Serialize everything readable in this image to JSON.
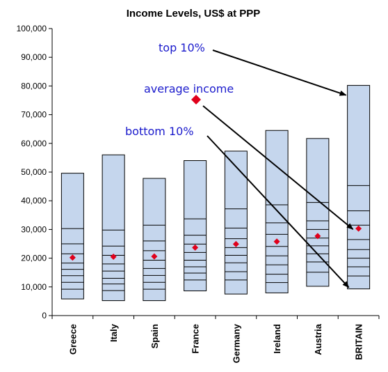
{
  "chart_data": {
    "type": "bar",
    "title": "Income Levels, US$ at PPP",
    "xlabel": "",
    "ylabel": "",
    "ylim": [
      0,
      100000
    ],
    "yticks": [
      0,
      10000,
      20000,
      30000,
      40000,
      50000,
      60000,
      70000,
      80000,
      90000,
      100000
    ],
    "ytick_labels": [
      "0",
      "10,000",
      "20,000",
      "30,000",
      "40,000",
      "50,000",
      "60,000",
      "70,000",
      "80,000",
      "90,000",
      "100,000"
    ],
    "categories": [
      "Greece",
      "Italy",
      "Spain",
      "France",
      "Germany",
      "Ireland",
      "Austria",
      "BRITAIN"
    ],
    "decile_boundaries": [
      [
        5800,
        9200,
        11600,
        13900,
        16100,
        18300,
        21500,
        25000,
        30300,
        49600
      ],
      [
        5200,
        8700,
        11000,
        13000,
        15500,
        18000,
        21000,
        24200,
        29800,
        56000
      ],
      [
        5200,
        9200,
        11600,
        14000,
        16400,
        19300,
        22600,
        26000,
        31500,
        47800
      ],
      [
        8600,
        12400,
        14800,
        17000,
        19300,
        22000,
        24900,
        28000,
        33700,
        54000
      ],
      [
        7500,
        12400,
        15300,
        18400,
        21000,
        23700,
        26800,
        30500,
        37200,
        57300
      ],
      [
        7900,
        11500,
        14400,
        17700,
        20800,
        24100,
        28300,
        32300,
        38600,
        64500
      ],
      [
        10200,
        15100,
        18700,
        21500,
        24300,
        27000,
        30000,
        33000,
        39400,
        61700
      ],
      [
        9300,
        13800,
        17000,
        20000,
        23000,
        26500,
        31500,
        36500,
        45300,
        80200
      ]
    ],
    "average_income": [
      20200,
      20500,
      20600,
      23700,
      24900,
      25800,
      27700,
      30300
    ],
    "bar_fill": "#c5d6ed",
    "bar_stroke": "#000000",
    "average_marker_color": "#e0001b",
    "annotation_color": "#1a1acc",
    "annotations": [
      {
        "text": "top 10%",
        "points_to": "BRITAIN top 10% boundary"
      },
      {
        "text": "average income",
        "points_to": "BRITAIN average income"
      },
      {
        "text": "bottom 10%",
        "points_to": "BRITAIN bottom 10% boundary"
      }
    ],
    "grid": false,
    "legend": "none"
  }
}
